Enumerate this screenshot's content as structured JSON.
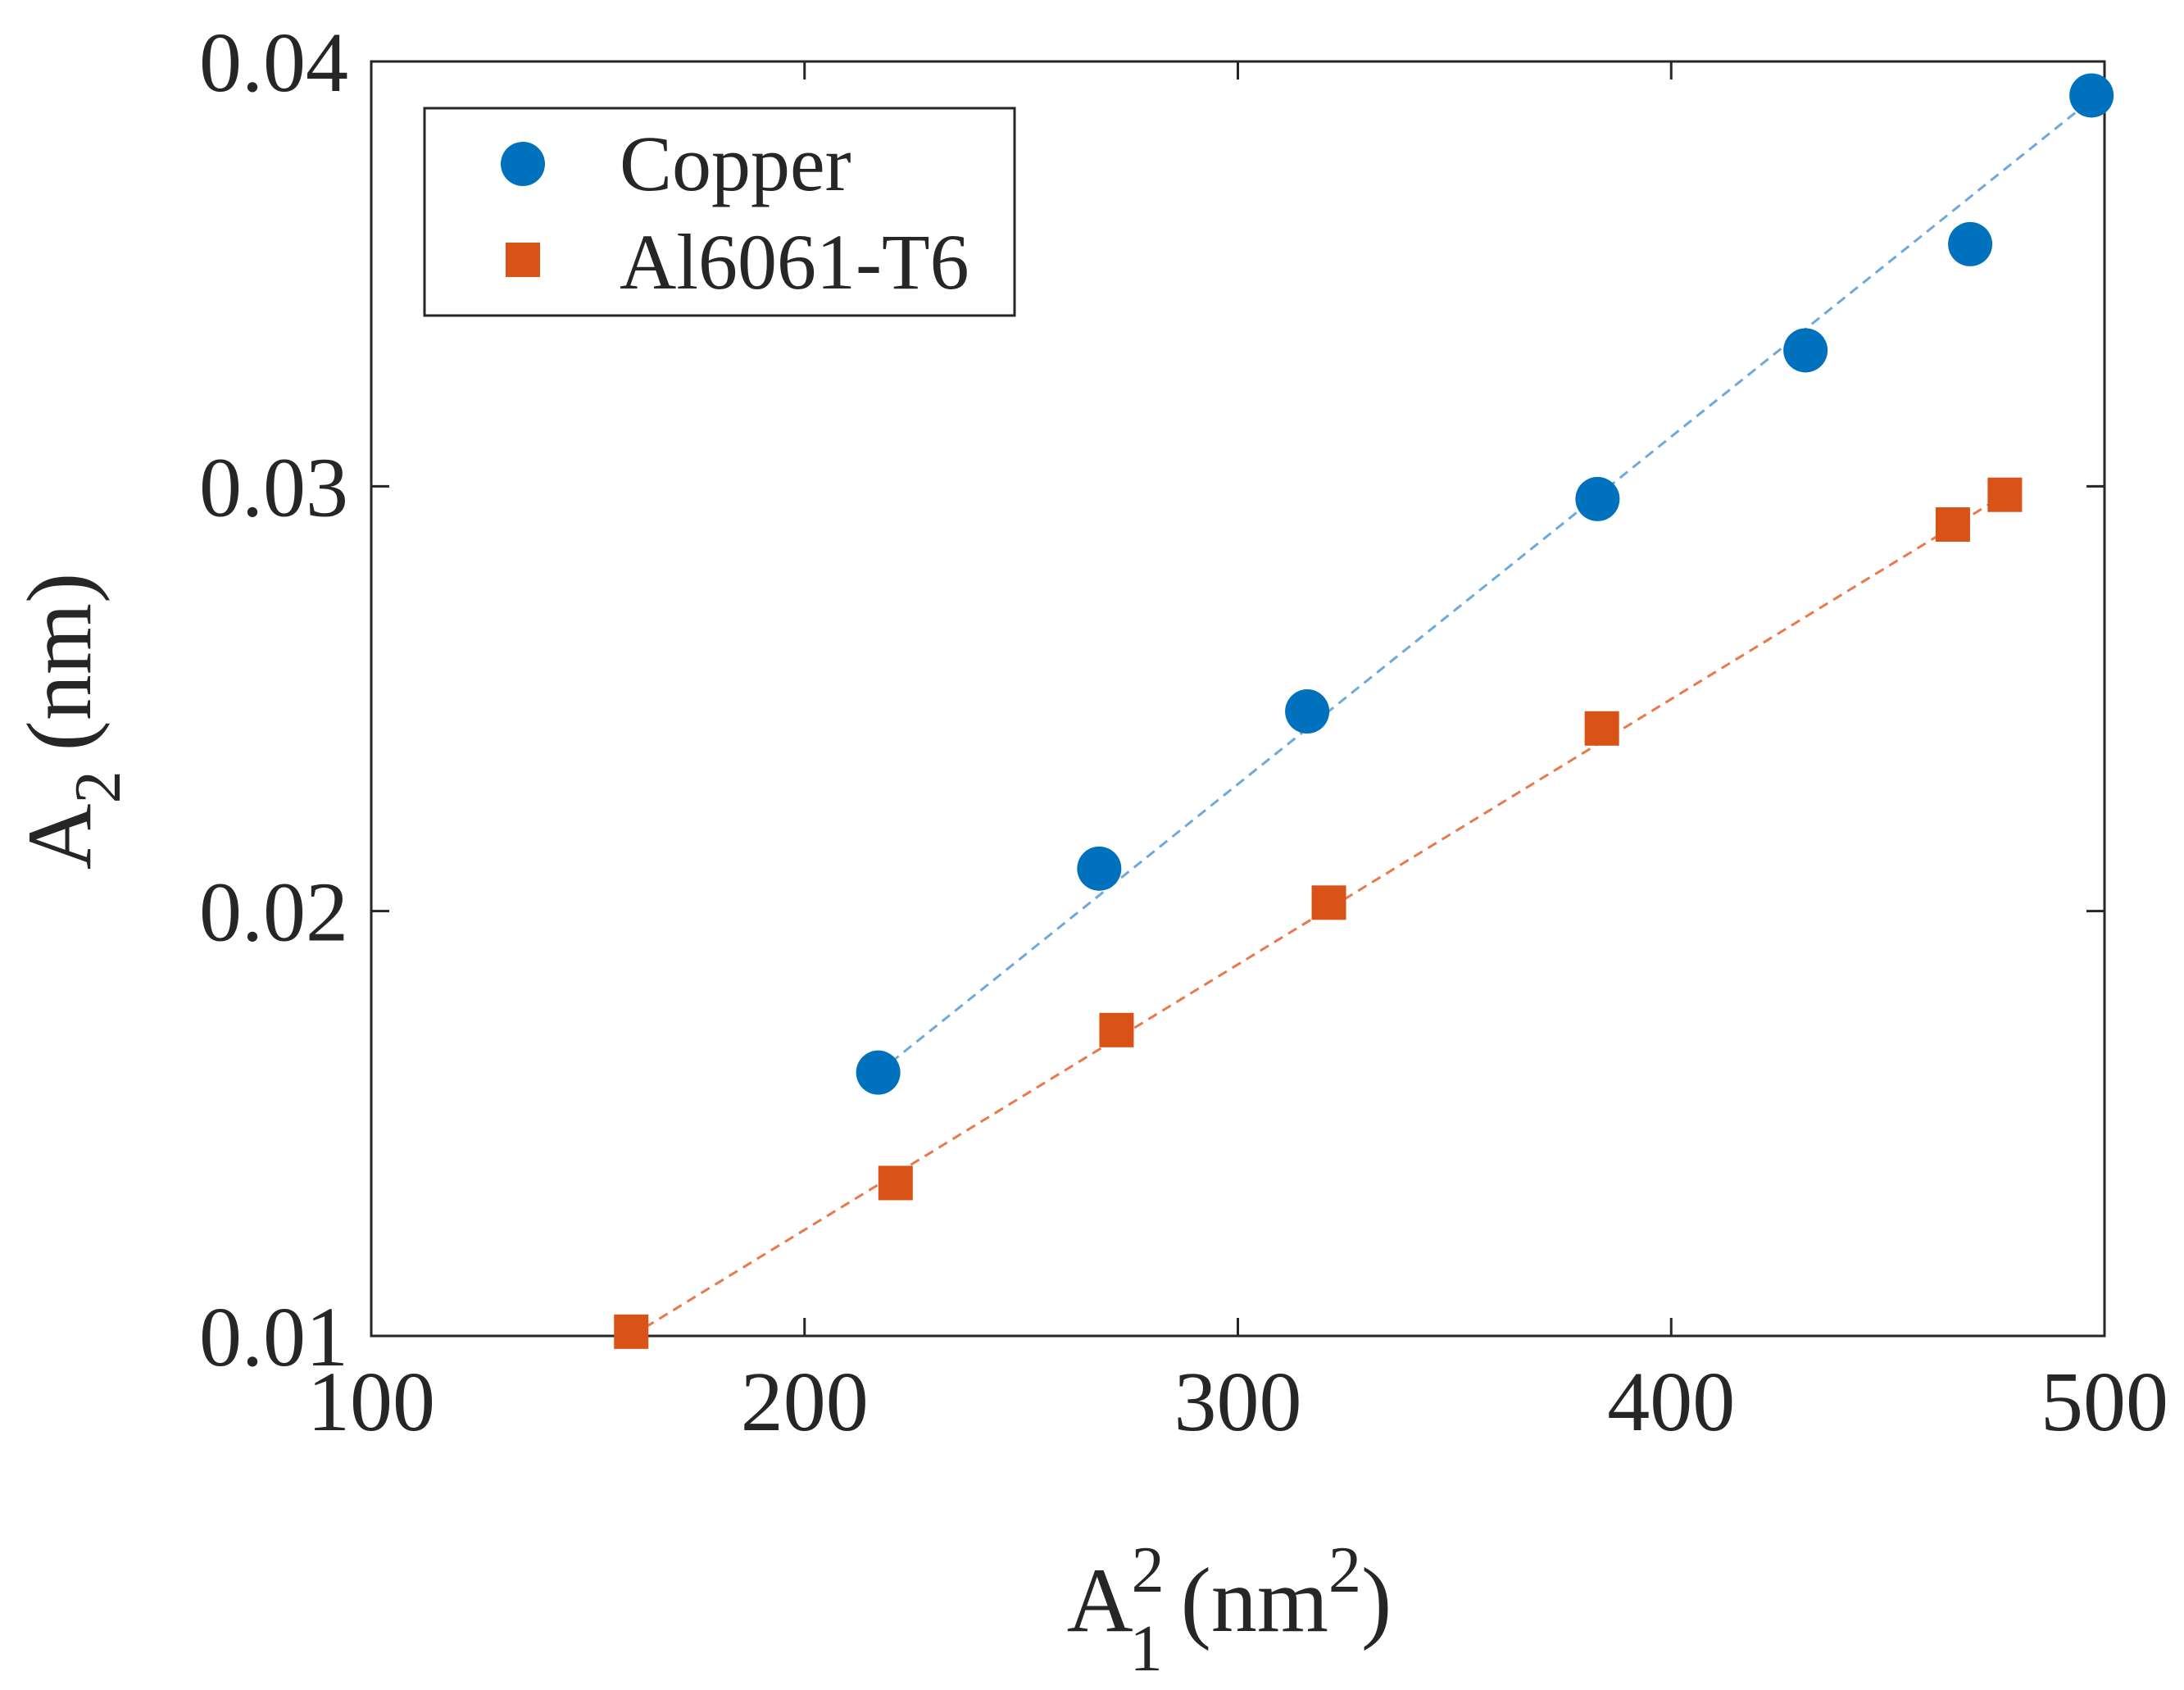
{
  "chart_data": {
    "type": "scatter",
    "title": "",
    "xlabel": {
      "base": "A",
      "sub": "1",
      "sup": "2",
      "unit_open": "(nm",
      "unit_sup": "2",
      "unit_close": ")"
    },
    "ylabel": {
      "base": "A",
      "sub": "2",
      "unit": "(nm)"
    },
    "xlim": [
      100,
      500
    ],
    "ylim": [
      0.01,
      0.04
    ],
    "xticks": [
      100,
      200,
      300,
      400,
      500
    ],
    "xtick_labels": [
      "100",
      "200",
      "300",
      "400",
      "500"
    ],
    "yticks": [
      0.01,
      0.02,
      0.03,
      0.04
    ],
    "ytick_labels": [
      "0.01",
      "0.02",
      "0.03",
      "0.04"
    ],
    "grid": false,
    "legend_position": "top-left",
    "series": [
      {
        "name": "Copper",
        "marker": "circle",
        "color": "#0072BD",
        "fit_color": "#6FA8DC",
        "x": [
          217,
          268,
          316,
          383,
          431,
          469,
          497
        ],
        "y": [
          0.0162,
          0.021,
          0.0247,
          0.0297,
          0.0332,
          0.0357,
          0.0392
        ],
        "fit": {
          "x": [
            217,
            497
          ],
          "y": [
            0.0162,
            0.0391
          ]
        }
      },
      {
        "name": "Al6061-T6",
        "marker": "square",
        "color": "#D95319",
        "fit_color": "#E8794A",
        "x": [
          160,
          221,
          272,
          321,
          384,
          465,
          477
        ],
        "y": [
          0.0101,
          0.0136,
          0.0172,
          0.0202,
          0.0243,
          0.0291,
          0.0298
        ],
        "fit": {
          "x": [
            160,
            477
          ],
          "y": [
            0.01,
            0.0298
          ]
        }
      }
    ]
  }
}
